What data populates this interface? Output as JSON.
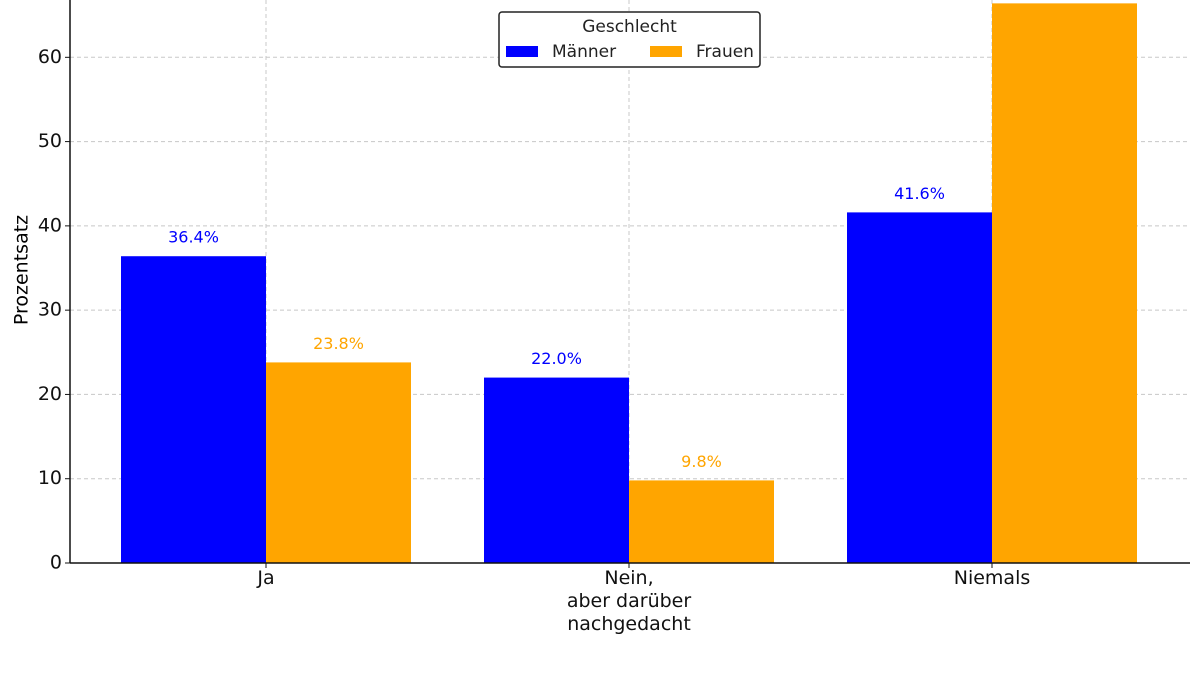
{
  "chart_data": {
    "type": "bar",
    "y_label": "Prozentsatz",
    "legend_title": "Geschlecht",
    "legend_position": "upper center",
    "categories": [
      "Ja",
      "Nein,\naber darüber\nnachgedacht",
      "Niemals"
    ],
    "series": [
      {
        "name": "Männer",
        "color": "#0000ff",
        "values": [
          36.4,
          22.0,
          41.6
        ],
        "value_labels": [
          "36.4%",
          "22.0%",
          "41.6%"
        ]
      },
      {
        "name": "Frauen",
        "color": "#ffa500",
        "values": [
          23.8,
          9.8,
          66.4
        ],
        "value_labels": [
          "23.8%",
          "9.8%",
          null
        ]
      }
    ],
    "ylim": [
      0,
      66.8
    ],
    "yticks": [
      0,
      10,
      20,
      30,
      40,
      50,
      60
    ],
    "grid": true
  }
}
